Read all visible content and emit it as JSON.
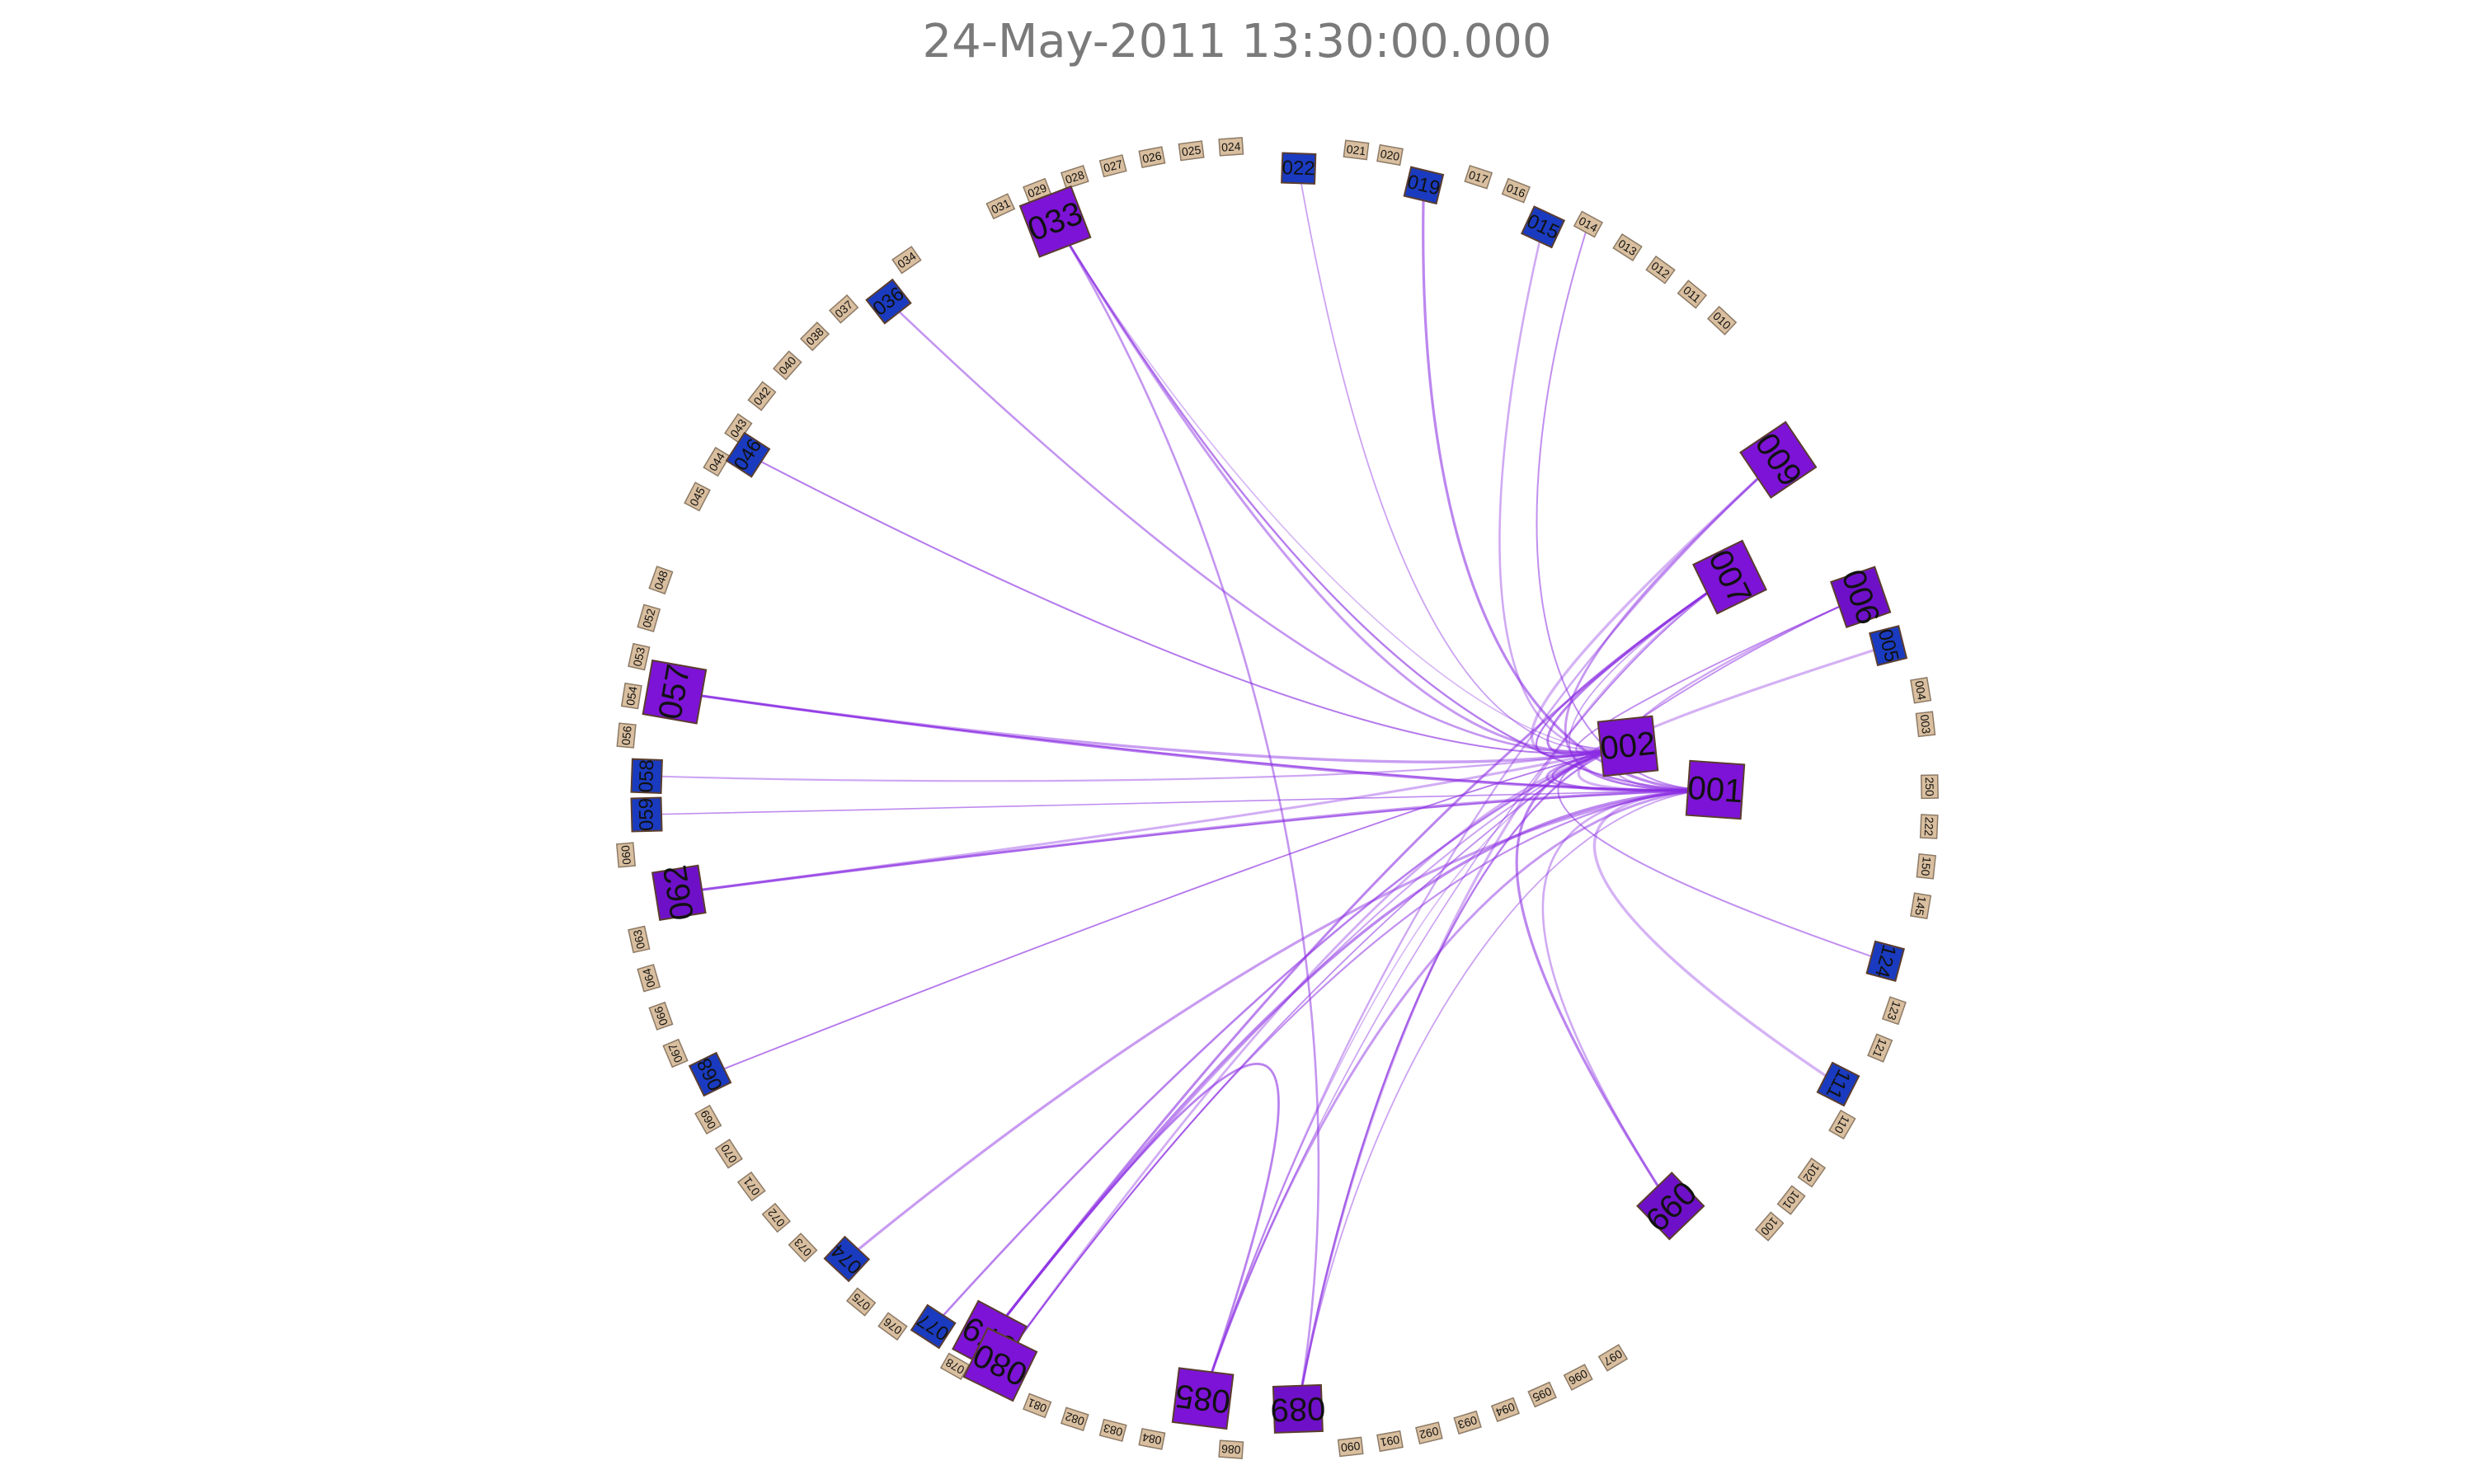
{
  "title": "24-May-2011 13:30:00.000",
  "colors": {
    "idle_node": "#d9bf9f",
    "idle_border": "#8c7a66",
    "mid_node": "#1a3bbf",
    "high_node": "#6f10c9",
    "highest_node": "#7d13d6",
    "edge_color": "#8a2be2"
  },
  "nodes": [
    {
      "id": "003",
      "level": 0
    },
    {
      "id": "004",
      "level": 0
    },
    {
      "id": "005",
      "level": 1
    },
    {
      "id": "006",
      "level": 2
    },
    {
      "id": "007",
      "level": 3
    },
    {
      "id": "009",
      "level": 3
    },
    {
      "id": "010",
      "level": 0
    },
    {
      "id": "011",
      "level": 0
    },
    {
      "id": "012",
      "level": 0
    },
    {
      "id": "013",
      "level": 0
    },
    {
      "id": "014",
      "level": 0
    },
    {
      "id": "015",
      "level": 1
    },
    {
      "id": "016",
      "level": 0
    },
    {
      "id": "017",
      "level": 0
    },
    {
      "id": "019",
      "level": 1
    },
    {
      "id": "020",
      "level": 0
    },
    {
      "id": "021",
      "level": 0
    },
    {
      "id": "022",
      "level": 1
    },
    {
      "id": "024",
      "level": 0
    },
    {
      "id": "025",
      "level": 0
    },
    {
      "id": "026",
      "level": 0
    },
    {
      "id": "027",
      "level": 0
    },
    {
      "id": "028",
      "level": 0
    },
    {
      "id": "029",
      "level": 0
    },
    {
      "id": "031",
      "level": 0
    },
    {
      "id": "033",
      "level": 3
    },
    {
      "id": "034",
      "level": 0
    },
    {
      "id": "036",
      "level": 1
    },
    {
      "id": "037",
      "level": 0
    },
    {
      "id": "038",
      "level": 0
    },
    {
      "id": "040",
      "level": 0
    },
    {
      "id": "042",
      "level": 0
    },
    {
      "id": "043",
      "level": 0
    },
    {
      "id": "044",
      "level": 0
    },
    {
      "id": "045",
      "level": 0
    },
    {
      "id": "046",
      "level": 1
    },
    {
      "id": "048",
      "level": 0
    },
    {
      "id": "052",
      "level": 0
    },
    {
      "id": "053",
      "level": 0
    },
    {
      "id": "054",
      "level": 0
    },
    {
      "id": "056",
      "level": 0
    },
    {
      "id": "057",
      "level": 3
    },
    {
      "id": "058",
      "level": 1
    },
    {
      "id": "059",
      "level": 1
    },
    {
      "id": "060",
      "level": 0
    },
    {
      "id": "062",
      "level": 2
    },
    {
      "id": "063",
      "level": 0
    },
    {
      "id": "064",
      "level": 0
    },
    {
      "id": "066",
      "level": 0
    },
    {
      "id": "067",
      "level": 0
    },
    {
      "id": "068",
      "level": 1
    },
    {
      "id": "069",
      "level": 0
    },
    {
      "id": "070",
      "level": 0
    },
    {
      "id": "071",
      "level": 0
    },
    {
      "id": "072",
      "level": 0
    },
    {
      "id": "073",
      "level": 0
    },
    {
      "id": "074",
      "level": 1
    },
    {
      "id": "075",
      "level": 0
    },
    {
      "id": "076",
      "level": 0
    },
    {
      "id": "077",
      "level": 1
    },
    {
      "id": "078",
      "level": 0
    },
    {
      "id": "079",
      "level": 3
    },
    {
      "id": "080",
      "level": 3
    },
    {
      "id": "081",
      "level": 0
    },
    {
      "id": "082",
      "level": 0
    },
    {
      "id": "083",
      "level": 0
    },
    {
      "id": "084",
      "level": 0
    },
    {
      "id": "085",
      "level": 3
    },
    {
      "id": "086",
      "level": 0
    },
    {
      "id": "089",
      "level": 2
    },
    {
      "id": "090",
      "level": 0
    },
    {
      "id": "091",
      "level": 0
    },
    {
      "id": "092",
      "level": 0
    },
    {
      "id": "093",
      "level": 0
    },
    {
      "id": "094",
      "level": 0
    },
    {
      "id": "095",
      "level": 0
    },
    {
      "id": "096",
      "level": 0
    },
    {
      "id": "097",
      "level": 0
    },
    {
      "id": "099",
      "level": 2
    },
    {
      "id": "100",
      "level": 0
    },
    {
      "id": "101",
      "level": 0
    },
    {
      "id": "102",
      "level": 0
    },
    {
      "id": "110",
      "level": 0
    },
    {
      "id": "111",
      "level": 1
    },
    {
      "id": "121",
      "level": 0
    },
    {
      "id": "123",
      "level": 0
    },
    {
      "id": "124",
      "level": 1
    },
    {
      "id": "145",
      "level": 0
    },
    {
      "id": "150",
      "level": 0
    },
    {
      "id": "222",
      "level": 0
    },
    {
      "id": "250",
      "level": 0
    },
    {
      "id": "002",
      "level": 3
    },
    {
      "id": "001",
      "level": 3
    }
  ],
  "edges": [
    [
      "002",
      "033"
    ],
    [
      "002",
      "033"
    ],
    [
      "001",
      "033"
    ],
    [
      "002",
      "022"
    ],
    [
      "001",
      "019"
    ],
    [
      "002",
      "015"
    ],
    [
      "001",
      "014"
    ],
    [
      "002",
      "009"
    ],
    [
      "001",
      "009"
    ],
    [
      "002",
      "007"
    ],
    [
      "001",
      "007"
    ],
    [
      "002",
      "007"
    ],
    [
      "001",
      "006"
    ],
    [
      "002",
      "006"
    ],
    [
      "001",
      "005"
    ],
    [
      "002",
      "036"
    ],
    [
      "002",
      "046"
    ],
    [
      "002",
      "057"
    ],
    [
      "001",
      "057"
    ],
    [
      "002",
      "058"
    ],
    [
      "001",
      "059"
    ],
    [
      "002",
      "062"
    ],
    [
      "001",
      "062"
    ],
    [
      "002",
      "068"
    ],
    [
      "001",
      "074"
    ],
    [
      "002",
      "077"
    ],
    [
      "002",
      "079"
    ],
    [
      "001",
      "079"
    ],
    [
      "002",
      "080"
    ],
    [
      "001",
      "080"
    ],
    [
      "002",
      "085"
    ],
    [
      "001",
      "085"
    ],
    [
      "002",
      "089"
    ],
    [
      "001",
      "089"
    ],
    [
      "002",
      "099"
    ],
    [
      "001",
      "099"
    ],
    [
      "002",
      "124"
    ],
    [
      "001",
      "111"
    ],
    [
      "002",
      "001"
    ],
    [
      "002",
      "001"
    ],
    [
      "007",
      "085"
    ],
    [
      "007",
      "079"
    ],
    [
      "009",
      "085"
    ],
    [
      "006",
      "080"
    ],
    [
      "007",
      "089"
    ],
    [
      "033",
      "089"
    ],
    [
      "057",
      "001"
    ],
    [
      "062",
      "001"
    ],
    [
      "079",
      "085"
    ]
  ]
}
